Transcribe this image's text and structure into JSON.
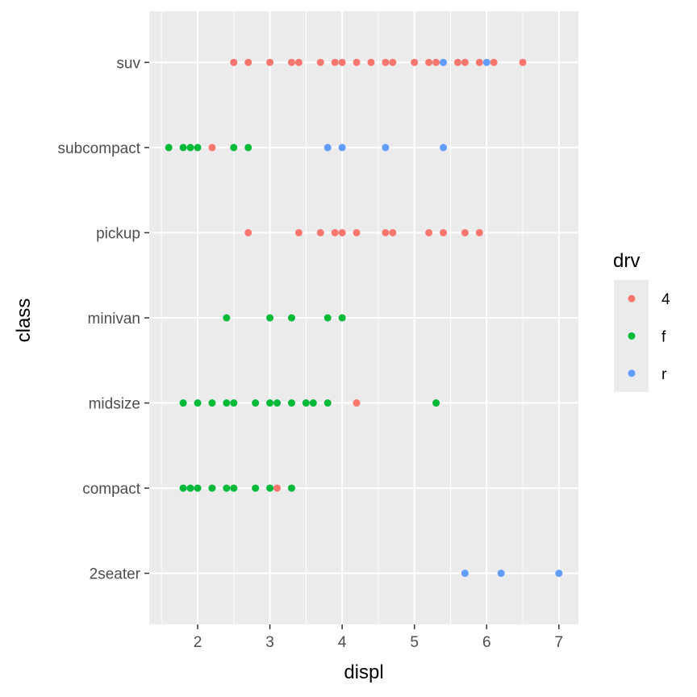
{
  "chart_data": {
    "type": "scatter",
    "xlabel": "displ",
    "ylabel": "class",
    "xlim": [
      1.33,
      7.27
    ],
    "x_ticks": [
      2,
      3,
      4,
      5,
      6,
      7
    ],
    "categories": [
      "2seater",
      "compact",
      "midsize",
      "minivan",
      "pickup",
      "subcompact",
      "suv"
    ],
    "grid": true,
    "legend": {
      "title": "drv",
      "placement": "right",
      "entries": [
        {
          "label": "4",
          "color": "#F8766D"
        },
        {
          "label": "f",
          "color": "#00BA38"
        },
        {
          "label": "r",
          "color": "#619CFF"
        }
      ]
    },
    "series": [
      {
        "name": "4",
        "color": "#F8766D",
        "points": [
          {
            "x": 2.5,
            "y": "suv"
          },
          {
            "x": 2.7,
            "y": "suv"
          },
          {
            "x": 3.0,
            "y": "suv"
          },
          {
            "x": 3.3,
            "y": "suv"
          },
          {
            "x": 3.4,
            "y": "suv"
          },
          {
            "x": 3.7,
            "y": "suv"
          },
          {
            "x": 3.9,
            "y": "suv"
          },
          {
            "x": 4.0,
            "y": "suv"
          },
          {
            "x": 4.2,
            "y": "suv"
          },
          {
            "x": 4.4,
            "y": "suv"
          },
          {
            "x": 4.6,
            "y": "suv"
          },
          {
            "x": 4.7,
            "y": "suv"
          },
          {
            "x": 5.0,
            "y": "suv"
          },
          {
            "x": 5.2,
            "y": "suv"
          },
          {
            "x": 5.3,
            "y": "suv"
          },
          {
            "x": 5.6,
            "y": "suv"
          },
          {
            "x": 5.7,
            "y": "suv"
          },
          {
            "x": 5.9,
            "y": "suv"
          },
          {
            "x": 6.1,
            "y": "suv"
          },
          {
            "x": 6.5,
            "y": "suv"
          },
          {
            "x": 2.2,
            "y": "subcompact"
          },
          {
            "x": 2.7,
            "y": "pickup"
          },
          {
            "x": 3.4,
            "y": "pickup"
          },
          {
            "x": 3.7,
            "y": "pickup"
          },
          {
            "x": 3.9,
            "y": "pickup"
          },
          {
            "x": 4.0,
            "y": "pickup"
          },
          {
            "x": 4.2,
            "y": "pickup"
          },
          {
            "x": 4.6,
            "y": "pickup"
          },
          {
            "x": 4.7,
            "y": "pickup"
          },
          {
            "x": 5.2,
            "y": "pickup"
          },
          {
            "x": 5.4,
            "y": "pickup"
          },
          {
            "x": 5.7,
            "y": "pickup"
          },
          {
            "x": 5.9,
            "y": "pickup"
          },
          {
            "x": 4.2,
            "y": "midsize"
          },
          {
            "x": 3.1,
            "y": "compact"
          }
        ]
      },
      {
        "name": "f",
        "color": "#00BA38",
        "points": [
          {
            "x": 1.6,
            "y": "subcompact"
          },
          {
            "x": 1.8,
            "y": "subcompact"
          },
          {
            "x": 1.9,
            "y": "subcompact"
          },
          {
            "x": 2.0,
            "y": "subcompact"
          },
          {
            "x": 2.5,
            "y": "subcompact"
          },
          {
            "x": 2.7,
            "y": "subcompact"
          },
          {
            "x": 2.4,
            "y": "minivan"
          },
          {
            "x": 3.0,
            "y": "minivan"
          },
          {
            "x": 3.3,
            "y": "minivan"
          },
          {
            "x": 3.8,
            "y": "minivan"
          },
          {
            "x": 4.0,
            "y": "minivan"
          },
          {
            "x": 1.8,
            "y": "midsize"
          },
          {
            "x": 2.0,
            "y": "midsize"
          },
          {
            "x": 2.2,
            "y": "midsize"
          },
          {
            "x": 2.4,
            "y": "midsize"
          },
          {
            "x": 2.5,
            "y": "midsize"
          },
          {
            "x": 2.8,
            "y": "midsize"
          },
          {
            "x": 3.0,
            "y": "midsize"
          },
          {
            "x": 3.1,
            "y": "midsize"
          },
          {
            "x": 3.3,
            "y": "midsize"
          },
          {
            "x": 3.5,
            "y": "midsize"
          },
          {
            "x": 3.6,
            "y": "midsize"
          },
          {
            "x": 3.8,
            "y": "midsize"
          },
          {
            "x": 5.3,
            "y": "midsize"
          },
          {
            "x": 1.8,
            "y": "compact"
          },
          {
            "x": 1.9,
            "y": "compact"
          },
          {
            "x": 2.0,
            "y": "compact"
          },
          {
            "x": 2.2,
            "y": "compact"
          },
          {
            "x": 2.4,
            "y": "compact"
          },
          {
            "x": 2.5,
            "y": "compact"
          },
          {
            "x": 2.8,
            "y": "compact"
          },
          {
            "x": 3.0,
            "y": "compact"
          },
          {
            "x": 3.3,
            "y": "compact"
          }
        ]
      },
      {
        "name": "r",
        "color": "#619CFF",
        "points": [
          {
            "x": 5.4,
            "y": "suv"
          },
          {
            "x": 6.0,
            "y": "suv"
          },
          {
            "x": 3.8,
            "y": "subcompact"
          },
          {
            "x": 4.0,
            "y": "subcompact"
          },
          {
            "x": 4.6,
            "y": "subcompact"
          },
          {
            "x": 5.4,
            "y": "subcompact"
          },
          {
            "x": 5.7,
            "y": "2seater"
          },
          {
            "x": 6.2,
            "y": "2seater"
          },
          {
            "x": 7.0,
            "y": "2seater"
          }
        ]
      }
    ]
  }
}
